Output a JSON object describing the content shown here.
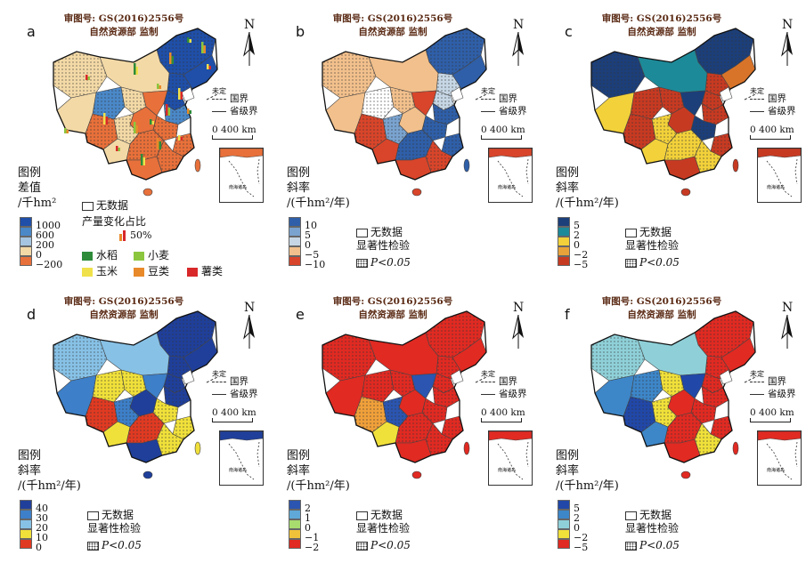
{
  "approval_line1": "审图号: GS(2016)2556号",
  "approval_line2": "自然资源部 监制",
  "north_label": "N",
  "border_keys": {
    "undetermined": "未定",
    "national": "国界",
    "provincial": "省级界"
  },
  "scale_label": "0  400 km",
  "inset_label": "南海诸岛",
  "nodata_label": "无数据",
  "legend_word": "图例",
  "sig_label": "显著性检验",
  "p_label": "P<0.05",
  "panels": [
    {
      "letter": "a",
      "legend_title1": "差值",
      "legend_title2": "/千hm²",
      "ticks": [
        "1000",
        "600",
        "200",
        "0",
        "−200"
      ],
      "colors": [
        "#1f4fa8",
        "#4a88c8",
        "#a6c5e0",
        "#f3d9a6",
        "#e8703a"
      ],
      "crop_title": "产量变化占比",
      "crop_pct": "50%",
      "crops": [
        {
          "name": "水稻",
          "color": "#2e8b3a"
        },
        {
          "name": "小麦",
          "color": "#8cc63f"
        },
        {
          "name": "玉米",
          "color": "#f0e14a"
        },
        {
          "name": "豆类",
          "color": "#e88a2a"
        },
        {
          "name": "薯类",
          "color": "#d8282a"
        }
      ]
    },
    {
      "letter": "b",
      "legend_title1": "斜率",
      "legend_title2": "/(千hm²/年)",
      "ticks": [
        "10",
        "5",
        "0",
        "−5",
        "−10"
      ],
      "colors": [
        "#2f5fa8",
        "#7aa3cf",
        "#c6d6e4",
        "#f2c08c",
        "#d8452a"
      ]
    },
    {
      "letter": "c",
      "legend_title1": "斜率",
      "legend_title2": "/(千hm²/年)",
      "ticks": [
        "5",
        "2",
        "0",
        "−2",
        "−5"
      ],
      "colors": [
        "#1c3f7a",
        "#1d8a99",
        "#f2d13a",
        "#e8a23a",
        "#c73a22"
      ]
    },
    {
      "letter": "d",
      "legend_title1": "斜率",
      "legend_title2": "/(千hm²/年)",
      "ticks": [
        "40",
        "30",
        "20",
        "10",
        "0"
      ],
      "colors": [
        "#1f3f9a",
        "#3d7fc8",
        "#87c1e6",
        "#f0e03a",
        "#e03a22"
      ]
    },
    {
      "letter": "e",
      "legend_title1": "斜率",
      "legend_title2": "/(千hm²/年)",
      "ticks": [
        "2",
        "1",
        "0",
        "−1",
        "−2"
      ],
      "colors": [
        "#2b55b0",
        "#5fa8d8",
        "#a8dc6e",
        "#f0c23a",
        "#e02a22"
      ]
    },
    {
      "letter": "f",
      "legend_title1": "斜率",
      "legend_title2": "/(千hm²/年)",
      "ticks": [
        "5",
        "2",
        "0",
        "−2",
        "−5"
      ],
      "colors": [
        "#2148a8",
        "#3d86c8",
        "#8fd0d8",
        "#f0e03a",
        "#e02a22"
      ]
    }
  ],
  "region_colors": {
    "a": [
      "#1f4fa8",
      "#1f4fa8",
      "#1f4fa8",
      "#f3d9a6",
      "#f3d9a6",
      "#1f4fa8",
      "#4a88c8",
      "#f3d9a6",
      "#e8703a",
      "#f3d9a6",
      "#e8703a",
      "#4a88c8",
      "#e8703a",
      "#e8703a",
      "#f3d9a6",
      "#e8703a",
      "#f3d9a6",
      "#e8703a",
      "#e8703a",
      "#e8703a"
    ],
    "b": [
      "#2f5fa8",
      "#2f5fa8",
      "#c6d6e4",
      "#f2c08c",
      "#f2c08c",
      "#c6d6e4",
      "#ffffff",
      "#f2c08c",
      "#d8452a",
      "#f2c08c",
      "#d8452a",
      "#2f5fa8",
      "#2f5fa8",
      "#f2c08c",
      "#7aa3cf",
      "#2f5fa8",
      "#d8452a",
      "#2f5fa8",
      "#d8452a",
      "#d8452a"
    ],
    "c": [
      "#1c3f7a",
      "#d8742a",
      "#c73a22",
      "#1c3f7a",
      "#1d8a99",
      "#c73a22",
      "#c73a22",
      "#f2d13a",
      "#c73a22",
      "#c73a22",
      "#1c3f7a",
      "#c73a22",
      "#1c3f7a",
      "#c73a22",
      "#f2d13a",
      "#c73a22",
      "#f2d13a",
      "#f2d13a",
      "#f2d13a",
      "#c73a22"
    ],
    "d": [
      "#1f3f9a",
      "#1f3f9a",
      "#1f3f9a",
      "#87c1e6",
      "#87c1e6",
      "#1f3f9a",
      "#f0e03a",
      "#3d7fc8",
      "#e03a22",
      "#f0e03a",
      "#3d7fc8",
      "#1f3f9a",
      "#f0e03a",
      "#1f3f9a",
      "#3d7fc8",
      "#f0e03a",
      "#f0e03a",
      "#e03a22",
      "#f0e03a",
      "#1f3f9a"
    ],
    "e": [
      "#e02a22",
      "#e02a22",
      "#e02a22",
      "#e02a22",
      "#e02a22",
      "#e02a22",
      "#e02a22",
      "#e02a22",
      "#f0a03a",
      "#e02a22",
      "#2b55b0",
      "#e02a22",
      "#e02a22",
      "#e02a22",
      "#2b55b0",
      "#e02a22",
      "#f0e03a",
      "#e02a22",
      "#e02a22",
      "#e02a22"
    ],
    "f": [
      "#e02a22",
      "#e02a22",
      "#e02a22",
      "#8fd0d8",
      "#8fd0d8",
      "#e02a22",
      "#3d86c8",
      "#3d86c8",
      "#2148a8",
      "#f0e03a",
      "#2148a8",
      "#e02a22",
      "#e02a22",
      "#e02a22",
      "#f0e03a",
      "#e02a22",
      "#3d86c8",
      "#e02a22",
      "#f0e03a",
      "#e02a22"
    ]
  }
}
